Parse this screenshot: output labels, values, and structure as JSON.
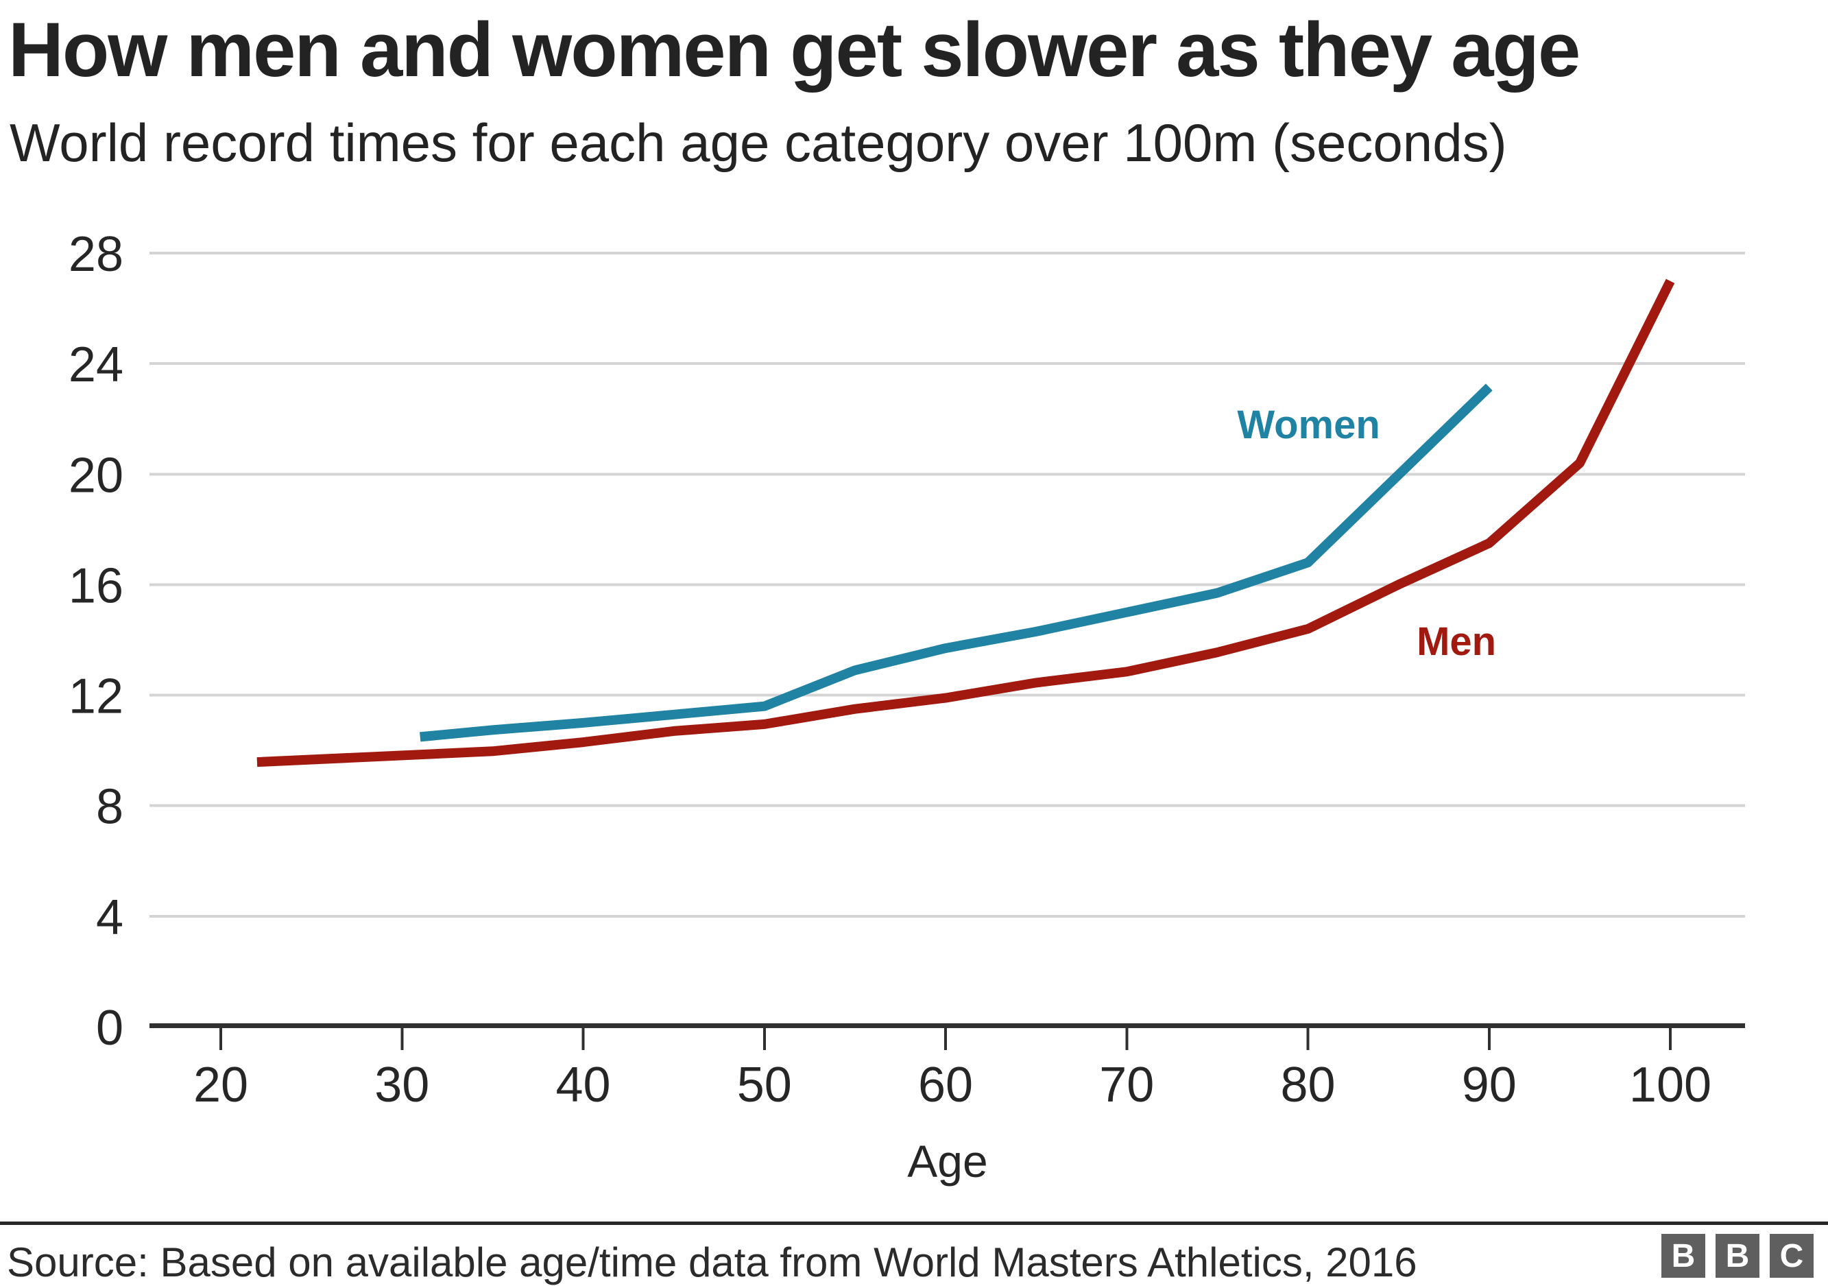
{
  "title": "How men and women get slower as they age",
  "subtitle": "World record times for each age category over 100m (seconds)",
  "source": {
    "text": "Source: Based on available age/time data from World Masters Athletics, 2016",
    "logo_letters": [
      "B",
      "B",
      "C"
    ]
  },
  "colors": {
    "men": "#a1190f",
    "women": "#2083a3",
    "grid": "#d4d4d4",
    "axis": "#303030",
    "text": "#262626"
  },
  "chart_data": {
    "type": "line",
    "title": "How men and women get slower as they age",
    "subtitle": "World record times for each age category over 100m (seconds)",
    "xlabel": "Age",
    "ylabel": "",
    "xlim": [
      16,
      104
    ],
    "ylim": [
      0,
      28
    ],
    "x_ticks": [
      20,
      30,
      40,
      50,
      60,
      70,
      80,
      90,
      100
    ],
    "y_ticks": [
      0,
      4,
      8,
      12,
      16,
      20,
      24,
      28
    ],
    "grid": "horizontal",
    "legend_position": "inline-labels",
    "series": [
      {
        "name": "Men",
        "color": "#a1190f",
        "points": [
          [
            22,
            9.58
          ],
          [
            35,
            9.97
          ],
          [
            40,
            10.3
          ],
          [
            45,
            10.7
          ],
          [
            50,
            10.95
          ],
          [
            55,
            11.5
          ],
          [
            60,
            11.9
          ],
          [
            65,
            12.45
          ],
          [
            70,
            12.85
          ],
          [
            75,
            13.55
          ],
          [
            80,
            14.4
          ],
          [
            85,
            16.0
          ],
          [
            90,
            17.5
          ],
          [
            95,
            20.4
          ],
          [
            100,
            26.99
          ]
        ]
      },
      {
        "name": "Women",
        "color": "#2083a3",
        "points": [
          [
            31,
            10.49
          ],
          [
            35,
            10.74
          ],
          [
            40,
            11.0
          ],
          [
            45,
            11.3
          ],
          [
            50,
            11.6
          ],
          [
            55,
            12.9
          ],
          [
            60,
            13.7
          ],
          [
            65,
            14.3
          ],
          [
            70,
            15.0
          ],
          [
            75,
            15.7
          ],
          [
            80,
            16.8
          ],
          [
            90,
            23.15
          ]
        ]
      }
    ],
    "annotations": [
      {
        "text": "Women",
        "x": 76.1,
        "y": 21.3,
        "color": "#2083a3"
      },
      {
        "text": "Men",
        "x": 86.0,
        "y": 13.45,
        "color": "#a1190f"
      }
    ]
  }
}
